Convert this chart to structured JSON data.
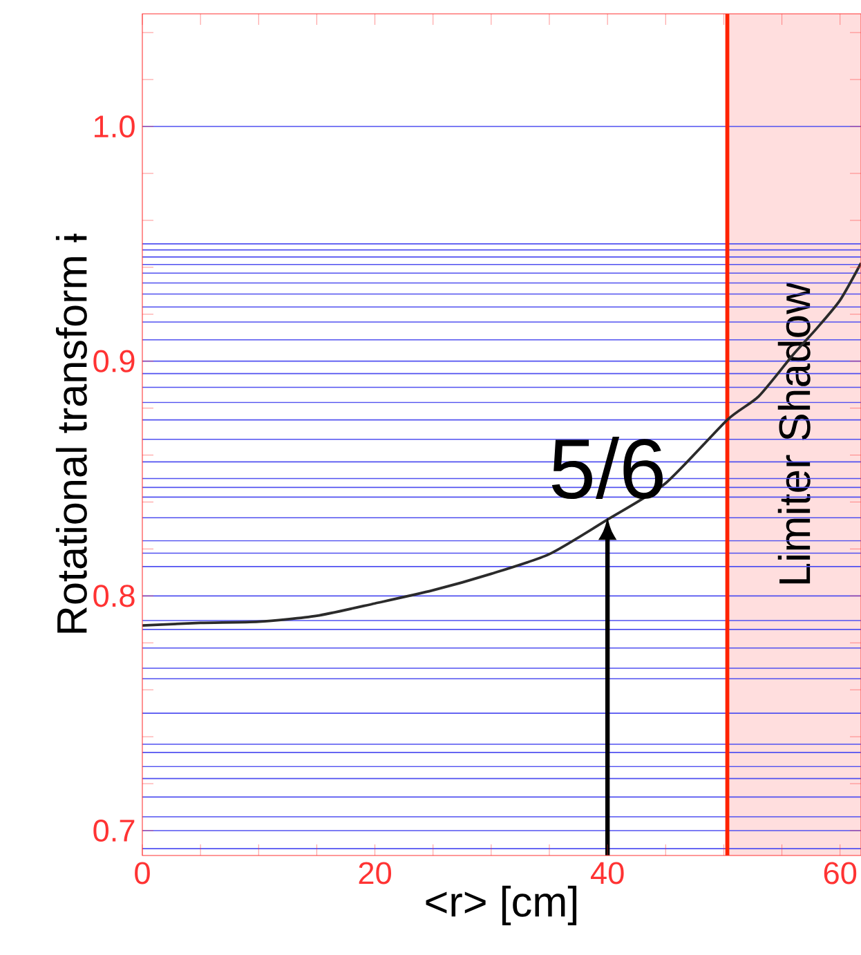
{
  "chart_data": {
    "type": "line",
    "xlabel": "<r> [cm]",
    "ylabel": "Rotational transform ɨ",
    "x": [
      0,
      5,
      10,
      15,
      20,
      25,
      30,
      35,
      40,
      45,
      50.3,
      53,
      56,
      58,
      60,
      61.8
    ],
    "series": [
      {
        "color": "#2b2b2b",
        "values": [
          0.7874,
          0.7885,
          0.789,
          0.7915,
          0.7968,
          0.8024,
          0.8094,
          0.8178,
          0.8325,
          0.848,
          0.875,
          0.885,
          0.903,
          0.914,
          0.926,
          0.9418
        ]
      }
    ],
    "xlim": [
      0,
      61.8
    ],
    "ylim": [
      0.6894,
      1.048
    ],
    "xticks": [
      0,
      {
        "value": 5,
        "label": null
      },
      {
        "value": 10,
        "label": null
      },
      {
        "value": 15,
        "label": null
      },
      20,
      {
        "value": 25,
        "label": null
      },
      {
        "value": 30,
        "label": null
      },
      {
        "value": 35,
        "label": null
      },
      40,
      {
        "value": 45,
        "label": null
      },
      {
        "value": 50,
        "label": null
      },
      {
        "value": 55,
        "label": null
      },
      60
    ],
    "yticks": [
      {
        "value": 0.7,
        "label": "0.7"
      },
      {
        "value": 0.72,
        "label": null
      },
      {
        "value": 0.74,
        "label": null
      },
      {
        "value": 0.76,
        "label": null
      },
      {
        "value": 0.78,
        "label": null
      },
      {
        "value": 0.8,
        "label": "0.8"
      },
      {
        "value": 0.82,
        "label": null
      },
      {
        "value": 0.84,
        "label": null
      },
      {
        "value": 0.86,
        "label": null
      },
      {
        "value": 0.88,
        "label": null
      },
      {
        "value": 0.9,
        "label": "0.9"
      },
      {
        "value": 0.92,
        "label": null
      },
      {
        "value": 0.94,
        "label": null
      },
      {
        "value": 0.96,
        "label": null
      },
      {
        "value": 0.98,
        "label": null
      },
      {
        "value": 1.0,
        "label": "1.0"
      },
      {
        "value": 1.02,
        "label": null
      },
      {
        "value": 1.04,
        "label": null
      }
    ],
    "marker": "none",
    "line_style": "solid",
    "bands": [
      {
        "axis": "x",
        "from": 50.3,
        "to": 61.8,
        "label": "Limiter Shadow",
        "color": "#ffdede"
      }
    ],
    "ref_lines": [
      {
        "axis": "x",
        "value": 50.3,
        "color": "#ff2200"
      },
      {
        "axis": "y",
        "value": 1.0,
        "color": "#5050f0"
      },
      {
        "axis": "y",
        "value": 0.75,
        "color": "#5050f0"
      },
      {
        "axis": "y",
        "value": 0.8,
        "color": "#5050f0"
      },
      {
        "axis": "y",
        "value": 0.8333,
        "color": "#5050f0"
      },
      {
        "axis": "y",
        "value": 0.7143,
        "color": "#5050f0"
      },
      {
        "axis": "y",
        "value": 0.8571,
        "color": "#5050f0"
      },
      {
        "axis": "y",
        "value": 0.875,
        "color": "#5050f0"
      },
      {
        "axis": "y",
        "value": 0.7778,
        "color": "#5050f0"
      },
      {
        "axis": "y",
        "value": 0.8889,
        "color": "#5050f0"
      },
      {
        "axis": "y",
        "value": 0.7,
        "color": "#5050f0"
      },
      {
        "axis": "y",
        "value": 0.9,
        "color": "#5050f0"
      },
      {
        "axis": "y",
        "value": 0.7273,
        "color": "#5050f0"
      },
      {
        "axis": "y",
        "value": 0.8182,
        "color": "#5050f0"
      },
      {
        "axis": "y",
        "value": 0.9091,
        "color": "#5050f0"
      },
      {
        "axis": "y",
        "value": 0.9167,
        "color": "#5050f0"
      },
      {
        "axis": "y",
        "value": 0.6923,
        "color": "#5050f0"
      },
      {
        "axis": "y",
        "value": 0.7692,
        "color": "#5050f0"
      },
      {
        "axis": "y",
        "value": 0.8462,
        "color": "#5050f0"
      },
      {
        "axis": "y",
        "value": 0.9231,
        "color": "#5050f0"
      },
      {
        "axis": "y",
        "value": 0.7857,
        "color": "#5050f0"
      },
      {
        "axis": "y",
        "value": 0.9286,
        "color": "#5050f0"
      },
      {
        "axis": "y",
        "value": 0.7333,
        "color": "#5050f0"
      },
      {
        "axis": "y",
        "value": 0.8667,
        "color": "#5050f0"
      },
      {
        "axis": "y",
        "value": 0.9333,
        "color": "#5050f0"
      },
      {
        "axis": "y",
        "value": 0.8125,
        "color": "#5050f0"
      },
      {
        "axis": "y",
        "value": 0.9375,
        "color": "#5050f0"
      },
      {
        "axis": "y",
        "value": 0.7059,
        "color": "#5050f0"
      },
      {
        "axis": "y",
        "value": 0.7647,
        "color": "#5050f0"
      },
      {
        "axis": "y",
        "value": 0.8235,
        "color": "#5050f0"
      },
      {
        "axis": "y",
        "value": 0.8824,
        "color": "#5050f0"
      },
      {
        "axis": "y",
        "value": 0.9412,
        "color": "#5050f0"
      },
      {
        "axis": "y",
        "value": 0.7222,
        "color": "#5050f0"
      },
      {
        "axis": "y",
        "value": 0.9444,
        "color": "#5050f0"
      },
      {
        "axis": "y",
        "value": 0.7368,
        "color": "#5050f0"
      },
      {
        "axis": "y",
        "value": 0.7895,
        "color": "#5050f0"
      },
      {
        "axis": "y",
        "value": 0.8421,
        "color": "#5050f0"
      },
      {
        "axis": "y",
        "value": 0.8947,
        "color": "#5050f0"
      },
      {
        "axis": "y",
        "value": 0.9474,
        "color": "#5050f0"
      },
      {
        "axis": "y",
        "value": 0.85,
        "color": "#5050f0"
      },
      {
        "axis": "y",
        "value": 0.95,
        "color": "#5050f0"
      }
    ],
    "annotations": [
      {
        "text": "5/6",
        "x": 40,
        "y": 0.8333
      }
    ]
  }
}
